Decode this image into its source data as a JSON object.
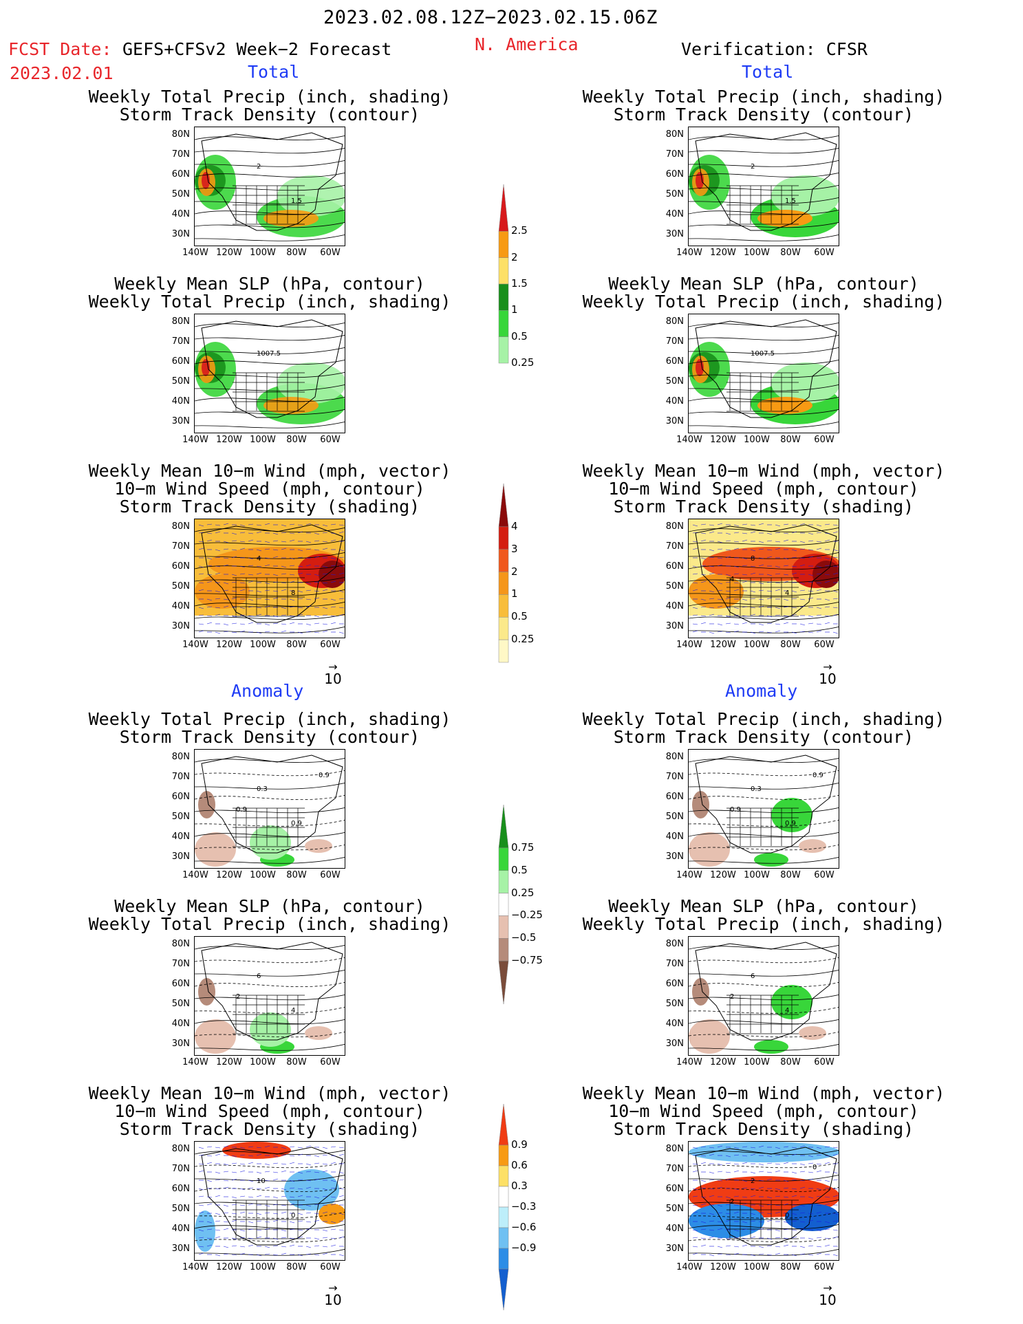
{
  "header": {
    "period": "2023.02.08.12Z−2023.02.15.06Z",
    "region": "N. America",
    "fcst_label": "FCST Date:",
    "fcst_model": "GEFS+CFSv2 Week−2 Forecast",
    "fcst_date": "2023.02.01",
    "verification": "Verification: CFSR"
  },
  "sections": {
    "total_left": "Total",
    "total_right": "Total",
    "anomaly_left": "Anomaly",
    "anomaly_right": "Anomaly"
  },
  "titles": {
    "precip_track": [
      "Weekly Total Precip (inch, shading)",
      "Storm Track Density (contour)"
    ],
    "slp_precip": [
      "Weekly Mean SLP (hPa, contour)",
      "Weekly Total Precip (inch, shading)"
    ],
    "wind_track": [
      "Weekly Mean 10−m Wind (mph, vector)",
      "10−m Wind Speed (mph, contour)",
      "Storm Track Density (shading)"
    ]
  },
  "axes": {
    "lat_labels": [
      "80N",
      "70N",
      "60N",
      "50N",
      "40N",
      "30N"
    ],
    "lon_labels": [
      "140W",
      "120W",
      "100W",
      "80W",
      "60W"
    ]
  },
  "vector_ref": "10",
  "contour_labels": {
    "r1": [
      "2",
      "1.5"
    ],
    "r2": [
      "1007.5"
    ],
    "r3_left": [
      "4",
      "8"
    ],
    "r3_right": [
      "8",
      "4",
      "4"
    ],
    "r4": [
      "0.3",
      "0.9",
      "0.9",
      "0.9"
    ],
    "r5": [
      "6",
      "4",
      "2"
    ],
    "r6_left": [
      "10",
      "0"
    ],
    "r6_right": [
      "2",
      "0",
      "2",
      "0"
    ]
  },
  "colorbars": {
    "precip_total": {
      "labels": [
        "2.5",
        "2",
        "1.5",
        "1",
        "0.5",
        "0.25"
      ],
      "colors": [
        "#d7191c",
        "#f79a13",
        "#fde066",
        "#188f1b",
        "#38d63a",
        "#a6f2a6"
      ]
    },
    "track_total": {
      "labels": [
        "4",
        "3",
        "2",
        "1",
        "0.5",
        "0.25"
      ],
      "colors": [
        "#8a0b0b",
        "#d41d10",
        "#f0581c",
        "#f5961a",
        "#f8bd3a",
        "#fbe98a",
        "#fff8c6"
      ]
    },
    "precip_anom": {
      "labels": [
        "0.75",
        "0.5",
        "0.25",
        "−0.25",
        "−0.5",
        "−0.75"
      ],
      "colors": [
        "#188f1b",
        "#38d63a",
        "#a6f2a6",
        "#ffffff",
        "#e6c0b0",
        "#b58b7a",
        "#7a4c3a"
      ]
    },
    "track_anom": {
      "labels": [
        "0.9",
        "0.6",
        "0.3",
        "−0.3",
        "−0.6",
        "−0.9"
      ],
      "colors": [
        "#f03c14",
        "#f79a13",
        "#fde066",
        "#ffffff",
        "#bdeefa",
        "#6fc0f2",
        "#2c8de6",
        "#135fcf"
      ]
    }
  },
  "colors": {
    "header_red": "#e8262b",
    "section_blue": "#1f3cf5",
    "contour": "#000000",
    "vector": "#1b1be0"
  }
}
